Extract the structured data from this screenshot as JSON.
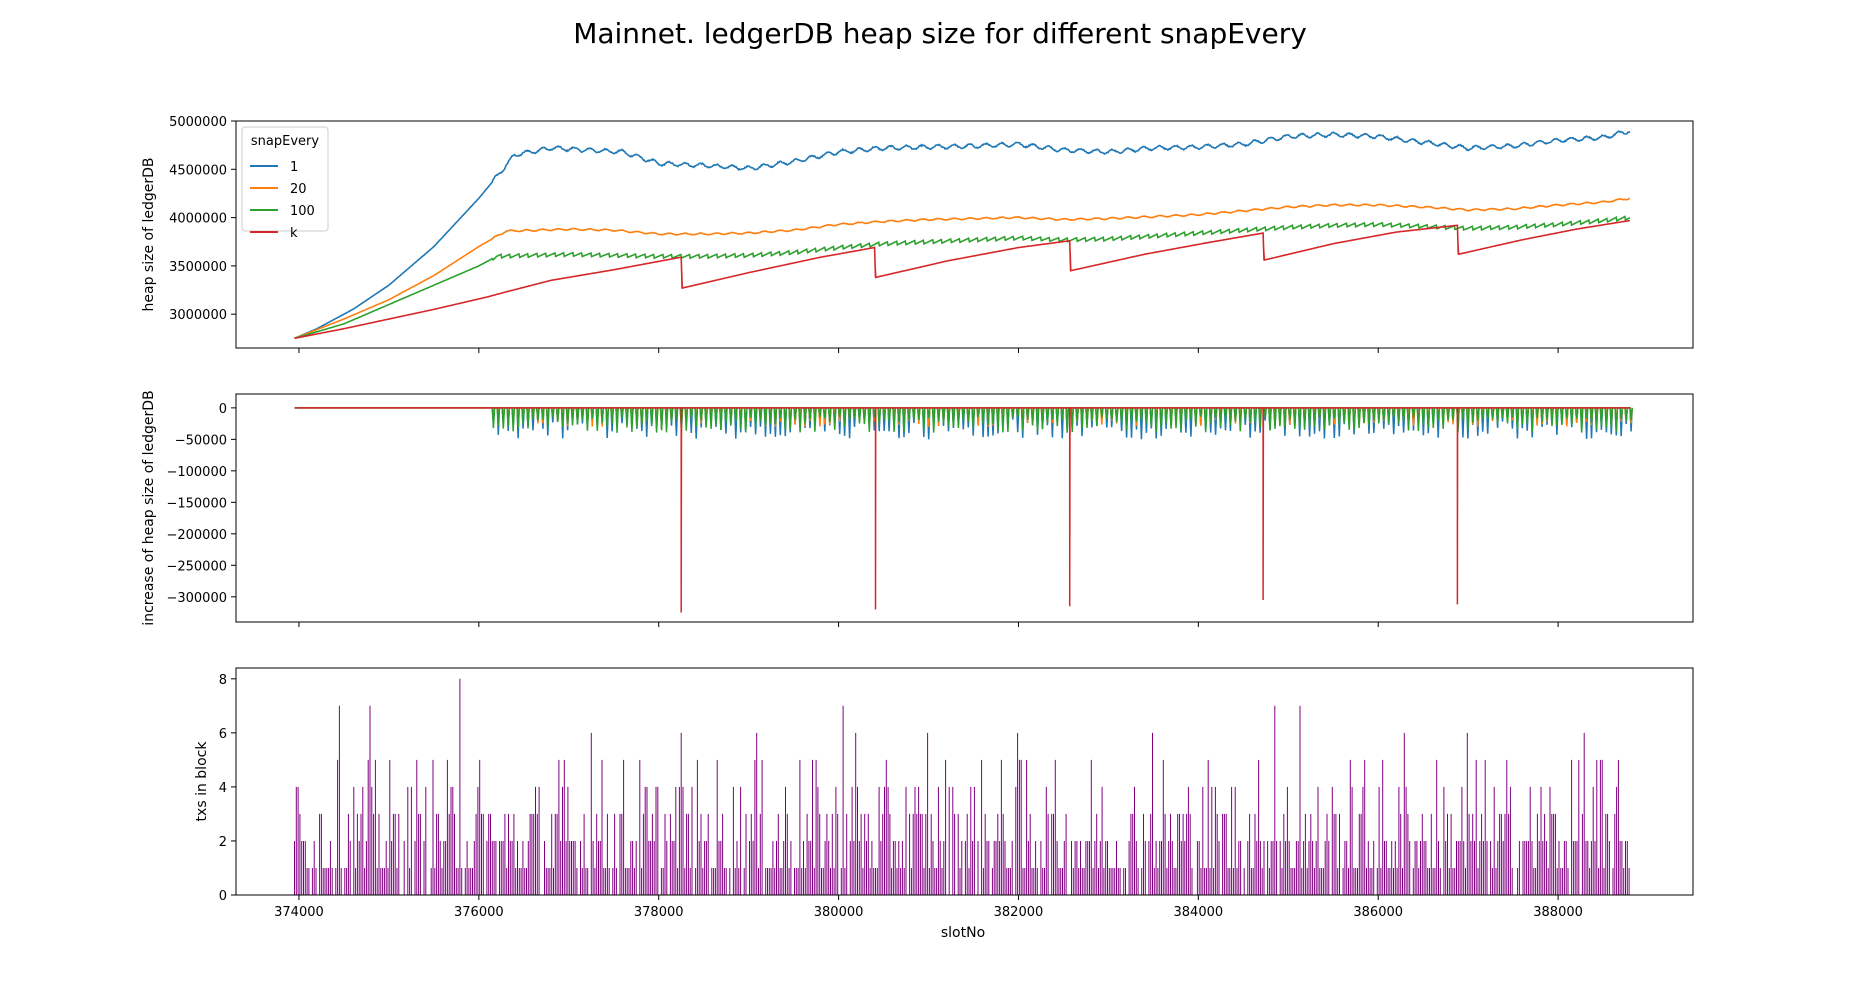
{
  "figure": {
    "title": "Mainnet. ledgerDB heap size for different snapEvery",
    "xlabel": "slotNo",
    "x_ticks": [
      374000,
      376000,
      378000,
      380000,
      382000,
      384000,
      386000,
      388000
    ],
    "xlim": [
      373300,
      389500
    ]
  },
  "chart_data": [
    {
      "type": "line",
      "ylabel": "heap size of ledgerDB",
      "ylim": [
        2650000,
        5000000
      ],
      "y_ticks": [
        3000000,
        3500000,
        4000000,
        4500000,
        5000000
      ],
      "legend": {
        "title": "snapEvery",
        "placement": "top-left"
      },
      "series": [
        {
          "name": "1",
          "color": "#1f77b4",
          "points": [
            [
              373950,
              2750000
            ],
            [
              374200,
              2850000
            ],
            [
              374600,
              3050000
            ],
            [
              375000,
              3300000
            ],
            [
              375500,
              3700000
            ],
            [
              376000,
              4200000
            ],
            [
              376400,
              4650000
            ],
            [
              376800,
              4720000
            ],
            [
              377200,
              4700000
            ],
            [
              377600,
              4680000
            ],
            [
              378000,
              4560000
            ],
            [
              378500,
              4540000
            ],
            [
              379000,
              4510000
            ],
            [
              379500,
              4580000
            ],
            [
              380000,
              4680000
            ],
            [
              380500,
              4720000
            ],
            [
              381000,
              4730000
            ],
            [
              381500,
              4740000
            ],
            [
              382000,
              4760000
            ],
            [
              382500,
              4700000
            ],
            [
              383000,
              4680000
            ],
            [
              383500,
              4720000
            ],
            [
              384000,
              4730000
            ],
            [
              384500,
              4760000
            ],
            [
              385000,
              4840000
            ],
            [
              385500,
              4860000
            ],
            [
              386000,
              4840000
            ],
            [
              386500,
              4780000
            ],
            [
              387000,
              4720000
            ],
            [
              387500,
              4740000
            ],
            [
              388000,
              4800000
            ],
            [
              388500,
              4830000
            ],
            [
              388800,
              4900000
            ]
          ],
          "wiggle": 20000
        },
        {
          "name": "20",
          "color": "#ff7f0e",
          "points": [
            [
              373950,
              2750000
            ],
            [
              374500,
              2950000
            ],
            [
              375000,
              3150000
            ],
            [
              375500,
              3400000
            ],
            [
              376000,
              3700000
            ],
            [
              376300,
              3860000
            ],
            [
              377000,
              3880000
            ],
            [
              377500,
              3870000
            ],
            [
              378000,
              3830000
            ],
            [
              378500,
              3830000
            ],
            [
              379000,
              3840000
            ],
            [
              379500,
              3870000
            ],
            [
              380000,
              3930000
            ],
            [
              380500,
              3960000
            ],
            [
              381000,
              3980000
            ],
            [
              381500,
              3990000
            ],
            [
              382000,
              4000000
            ],
            [
              382500,
              3980000
            ],
            [
              383000,
              3990000
            ],
            [
              383500,
              4010000
            ],
            [
              384000,
              4030000
            ],
            [
              384500,
              4070000
            ],
            [
              385000,
              4110000
            ],
            [
              385500,
              4130000
            ],
            [
              386000,
              4130000
            ],
            [
              386500,
              4110000
            ],
            [
              387000,
              4080000
            ],
            [
              387500,
              4090000
            ],
            [
              388000,
              4130000
            ],
            [
              388500,
              4160000
            ],
            [
              388800,
              4200000
            ]
          ],
          "wiggle": 8000
        },
        {
          "name": "100",
          "color": "#2ca02c",
          "points": [
            [
              373950,
              2750000
            ],
            [
              374500,
              2900000
            ],
            [
              375000,
              3100000
            ],
            [
              375500,
              3300000
            ],
            [
              376000,
              3500000
            ],
            [
              376200,
              3600000
            ],
            [
              377000,
              3620000
            ],
            [
              377500,
              3610000
            ],
            [
              378000,
              3600000
            ],
            [
              378500,
              3600000
            ],
            [
              379000,
              3610000
            ],
            [
              379500,
              3640000
            ],
            [
              380000,
              3690000
            ],
            [
              380500,
              3730000
            ],
            [
              381000,
              3750000
            ],
            [
              381500,
              3770000
            ],
            [
              382000,
              3790000
            ],
            [
              382500,
              3770000
            ],
            [
              383000,
              3780000
            ],
            [
              383500,
              3810000
            ],
            [
              384000,
              3840000
            ],
            [
              384500,
              3870000
            ],
            [
              385000,
              3900000
            ],
            [
              385500,
              3920000
            ],
            [
              386000,
              3930000
            ],
            [
              386500,
              3910000
            ],
            [
              387000,
              3890000
            ],
            [
              387500,
              3900000
            ],
            [
              388000,
              3930000
            ],
            [
              388500,
              3970000
            ],
            [
              388800,
              4000000
            ]
          ],
          "sawtooth": 40000
        },
        {
          "name": "k",
          "color": "#d62728",
          "points": [
            [
              373950,
              2750000
            ],
            [
              374500,
              2850000
            ],
            [
              375000,
              2950000
            ],
            [
              375500,
              3050000
            ],
            [
              376100,
              3180000
            ],
            [
              376300,
              3230000
            ],
            [
              376800,
              3350000
            ],
            [
              377500,
              3460000
            ],
            [
              378250,
              3590000
            ],
            [
              378260,
              3270000
            ],
            [
              379000,
              3430000
            ],
            [
              379800,
              3590000
            ],
            [
              380400,
              3690000
            ],
            [
              380410,
              3380000
            ],
            [
              381200,
              3550000
            ],
            [
              382000,
              3690000
            ],
            [
              382570,
              3760000
            ],
            [
              382580,
              3450000
            ],
            [
              383400,
              3620000
            ],
            [
              384100,
              3740000
            ],
            [
              384720,
              3840000
            ],
            [
              384730,
              3560000
            ],
            [
              385500,
              3730000
            ],
            [
              386200,
              3850000
            ],
            [
              386880,
              3920000
            ],
            [
              386890,
              3620000
            ],
            [
              387600,
              3770000
            ],
            [
              388200,
              3880000
            ],
            [
              388800,
              3970000
            ]
          ]
        }
      ]
    },
    {
      "type": "line",
      "ylabel": "increase of heap size of ledgerDB",
      "ylim": [
        -340000,
        22000
      ],
      "y_ticks": [
        0,
        -50000,
        -100000,
        -150000,
        -200000,
        -250000,
        -300000
      ],
      "y_tick_labels": [
        "0",
        "−50000",
        "−100000",
        "−150000",
        "−200000",
        "−250000",
        "−300000"
      ],
      "series": [
        {
          "name": "1",
          "color": "#1f77b4",
          "spike_range": [
            376150,
            388800
          ],
          "spike_min": -50000
        },
        {
          "name": "20",
          "color": "#ff7f0e",
          "spike_range": [
            376150,
            388800
          ],
          "spike_min": -30000
        },
        {
          "name": "100",
          "color": "#2ca02c",
          "spike_range": [
            376150,
            388800
          ],
          "spike_min": -40000
        },
        {
          "name": "k",
          "color": "#d62728",
          "drops": [
            [
              378250,
              -325000
            ],
            [
              380410,
              -320000
            ],
            [
              382570,
              -315000
            ],
            [
              384720,
              -305000
            ],
            [
              386880,
              -312000
            ]
          ]
        }
      ]
    },
    {
      "type": "bar",
      "ylabel": "txs in block",
      "ylim": [
        0,
        8.4
      ],
      "y_ticks": [
        0,
        2,
        4,
        6,
        8
      ],
      "color": "#800080",
      "x_range": [
        373950,
        388800
      ],
      "peaks": [
        [
          375800,
          8
        ],
        [
          374450,
          7
        ],
        [
          374800,
          7
        ],
        [
          380050,
          7
        ],
        [
          384850,
          7
        ],
        [
          385130,
          7
        ],
        [
          377250,
          6
        ],
        [
          378250,
          6
        ],
        [
          379100,
          6
        ],
        [
          380200,
          6
        ],
        [
          381000,
          6
        ],
        [
          382000,
          6
        ],
        [
          383500,
          6
        ],
        [
          386300,
          6
        ],
        [
          387000,
          6
        ],
        [
          388300,
          6
        ]
      ]
    }
  ]
}
